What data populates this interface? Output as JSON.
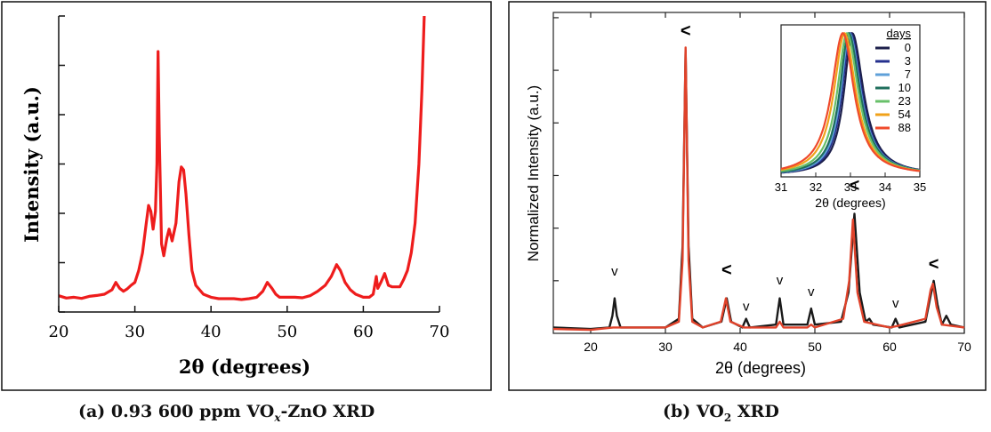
{
  "captions": {
    "a": {
      "pre": "(a) 0.93 600 ppm VO",
      "sub": "x",
      "post": "-ZnO XRD"
    },
    "b": {
      "pre": "(b) VO",
      "sub": "2",
      "post": " XRD"
    }
  },
  "chart_data": [
    {
      "id": "panel-a",
      "type": "line",
      "xlabel": "2θ (degrees)",
      "ylabel": "Intensity (a.u.)",
      "xlim": [
        20,
        70
      ],
      "ylim": [
        0,
        1
      ],
      "xticks": [
        20,
        30,
        40,
        50,
        60,
        70
      ],
      "colors": {
        "series": "#ee1c1c",
        "axis": "#111111"
      },
      "series": [
        {
          "points": [
            [
              20,
              0.055
            ],
            [
              21,
              0.047
            ],
            [
              22,
              0.05
            ],
            [
              23,
              0.046
            ],
            [
              24,
              0.053
            ],
            [
              25,
              0.056
            ],
            [
              26,
              0.06
            ],
            [
              27,
              0.075
            ],
            [
              27.5,
              0.1
            ],
            [
              28,
              0.08
            ],
            [
              28.5,
              0.07
            ],
            [
              29,
              0.078
            ],
            [
              29.5,
              0.09
            ],
            [
              30,
              0.1
            ],
            [
              30.5,
              0.14
            ],
            [
              31,
              0.2
            ],
            [
              31.5,
              0.3
            ],
            [
              31.8,
              0.36
            ],
            [
              32.1,
              0.34
            ],
            [
              32.4,
              0.28
            ],
            [
              32.7,
              0.34
            ],
            [
              32.9,
              0.5
            ],
            [
              33.05,
              0.88
            ],
            [
              33.2,
              0.6
            ],
            [
              33.5,
              0.23
            ],
            [
              33.8,
              0.19
            ],
            [
              34.2,
              0.25
            ],
            [
              34.5,
              0.28
            ],
            [
              34.9,
              0.24
            ],
            [
              35.4,
              0.3
            ],
            [
              35.8,
              0.44
            ],
            [
              36.1,
              0.49
            ],
            [
              36.4,
              0.48
            ],
            [
              36.7,
              0.4
            ],
            [
              37.1,
              0.26
            ],
            [
              37.5,
              0.14
            ],
            [
              38,
              0.09
            ],
            [
              39,
              0.06
            ],
            [
              40,
              0.05
            ],
            [
              41,
              0.045
            ],
            [
              42,
              0.045
            ],
            [
              43,
              0.045
            ],
            [
              44,
              0.042
            ],
            [
              45,
              0.045
            ],
            [
              46,
              0.05
            ],
            [
              46.8,
              0.07
            ],
            [
              47.4,
              0.1
            ],
            [
              48,
              0.08
            ],
            [
              48.5,
              0.06
            ],
            [
              49,
              0.05
            ],
            [
              50,
              0.05
            ],
            [
              51,
              0.05
            ],
            [
              52,
              0.048
            ],
            [
              53,
              0.055
            ],
            [
              54,
              0.07
            ],
            [
              55,
              0.09
            ],
            [
              55.8,
              0.12
            ],
            [
              56.5,
              0.16
            ],
            [
              57,
              0.14
            ],
            [
              57.6,
              0.1
            ],
            [
              58.3,
              0.075
            ],
            [
              59,
              0.06
            ],
            [
              60,
              0.05
            ],
            [
              60.8,
              0.05
            ],
            [
              61.3,
              0.06
            ],
            [
              61.7,
              0.12
            ],
            [
              61.9,
              0.08
            ],
            [
              62.3,
              0.1
            ],
            [
              62.8,
              0.13
            ],
            [
              63.3,
              0.09
            ],
            [
              63.8,
              0.085
            ],
            [
              64.3,
              0.085
            ],
            [
              64.8,
              0.085
            ],
            [
              65.3,
              0.11
            ],
            [
              65.8,
              0.14
            ],
            [
              66.3,
              0.2
            ],
            [
              66.8,
              0.3
            ],
            [
              67.3,
              0.5
            ],
            [
              67.7,
              0.75
            ],
            [
              68,
              1.0
            ]
          ]
        }
      ]
    },
    {
      "id": "panel-b",
      "type": "line",
      "xlabel": "2θ (degrees)",
      "ylabel": "Normalized Intensity (a.u.)",
      "xlim": [
        15,
        70
      ],
      "ylim": [
        0,
        1.1
      ],
      "xticks": [
        20,
        30,
        40,
        50,
        60,
        70
      ],
      "markers": [
        {
          "x": 23.2,
          "symbol": "v",
          "y": 0.18
        },
        {
          "x": 32.7,
          "symbol": "<",
          "y": 1.0
        },
        {
          "x": 38.2,
          "symbol": "<",
          "y": 0.18
        },
        {
          "x": 40.8,
          "symbol": "v",
          "y": 0.06
        },
        {
          "x": 45.3,
          "symbol": "v",
          "y": 0.15
        },
        {
          "x": 49.5,
          "symbol": "v",
          "y": 0.11
        },
        {
          "x": 55.3,
          "symbol": "<",
          "y": 0.47
        },
        {
          "x": 60.8,
          "symbol": "v",
          "y": 0.07
        },
        {
          "x": 65.9,
          "symbol": "<",
          "y": 0.2
        }
      ],
      "series": [
        {
          "color": "#1a1a1a",
          "points": [
            [
              15,
              0.02
            ],
            [
              20,
              0.015
            ],
            [
              22.5,
              0.02
            ],
            [
              22.9,
              0.06
            ],
            [
              23.2,
              0.12
            ],
            [
              23.5,
              0.06
            ],
            [
              24,
              0.02
            ],
            [
              30,
              0.02
            ],
            [
              31.8,
              0.05
            ],
            [
              32.3,
              0.3
            ],
            [
              32.7,
              0.97
            ],
            [
              33.1,
              0.3
            ],
            [
              33.6,
              0.05
            ],
            [
              35,
              0.02
            ],
            [
              37.5,
              0.04
            ],
            [
              38.2,
              0.12
            ],
            [
              38.8,
              0.04
            ],
            [
              40.3,
              0.02
            ],
            [
              40.8,
              0.05
            ],
            [
              41.3,
              0.02
            ],
            [
              44.8,
              0.03
            ],
            [
              45.3,
              0.12
            ],
            [
              45.8,
              0.03
            ],
            [
              49,
              0.03
            ],
            [
              49.5,
              0.085
            ],
            [
              50,
              0.03
            ],
            [
              53.5,
              0.04
            ],
            [
              54.5,
              0.14
            ],
            [
              55.3,
              0.41
            ],
            [
              56,
              0.14
            ],
            [
              56.8,
              0.04
            ],
            [
              57.3,
              0.05
            ],
            [
              57.8,
              0.03
            ],
            [
              60.3,
              0.02
            ],
            [
              60.8,
              0.05
            ],
            [
              61.3,
              0.02
            ],
            [
              64.8,
              0.04
            ],
            [
              65.5,
              0.13
            ],
            [
              65.9,
              0.18
            ],
            [
              66.4,
              0.1
            ],
            [
              67,
              0.03
            ],
            [
              67.6,
              0.06
            ],
            [
              68.2,
              0.03
            ],
            [
              70,
              0.02
            ]
          ]
        },
        {
          "color": "#e0422a",
          "points": [
            [
              15,
              0.015
            ],
            [
              20,
              0.012
            ],
            [
              23,
              0.02
            ],
            [
              30,
              0.02
            ],
            [
              31.8,
              0.04
            ],
            [
              32.3,
              0.25
            ],
            [
              32.7,
              0.98
            ],
            [
              33.1,
              0.25
            ],
            [
              33.6,
              0.04
            ],
            [
              35,
              0.02
            ],
            [
              37.4,
              0.04
            ],
            [
              38.1,
              0.12
            ],
            [
              38.7,
              0.04
            ],
            [
              40.5,
              0.02
            ],
            [
              44.8,
              0.02
            ],
            [
              45.3,
              0.04
            ],
            [
              45.8,
              0.02
            ],
            [
              49,
              0.02
            ],
            [
              49.5,
              0.03
            ],
            [
              50,
              0.02
            ],
            [
              53.8,
              0.05
            ],
            [
              54.6,
              0.18
            ],
            [
              55.1,
              0.39
            ],
            [
              55.7,
              0.14
            ],
            [
              56.6,
              0.04
            ],
            [
              60,
              0.02
            ],
            [
              61,
              0.025
            ],
            [
              64.8,
              0.05
            ],
            [
              65.5,
              0.15
            ],
            [
              65.8,
              0.17
            ],
            [
              66.3,
              0.09
            ],
            [
              67,
              0.03
            ],
            [
              70,
              0.02
            ]
          ]
        }
      ],
      "inset": {
        "xlabel": "2θ (degrees)",
        "xlim": [
          31,
          35
        ],
        "xticks": [
          31,
          32,
          33,
          34,
          35
        ],
        "legend_title": "days",
        "series": [
          {
            "name": "0",
            "color": "#1c1f4a",
            "peak": 33.05,
            "sl": 0.36,
            "sr": 0.5
          },
          {
            "name": "3",
            "color": "#25308e",
            "peak": 33.0,
            "sl": 0.37,
            "sr": 0.5
          },
          {
            "name": "7",
            "color": "#5fa0d9",
            "peak": 32.97,
            "sl": 0.38,
            "sr": 0.5
          },
          {
            "name": "10",
            "color": "#1f6e5c",
            "peak": 32.95,
            "sl": 0.4,
            "sr": 0.5
          },
          {
            "name": "23",
            "color": "#68c06a",
            "peak": 32.9,
            "sl": 0.43,
            "sr": 0.5
          },
          {
            "name": "54",
            "color": "#f0a21a",
            "peak": 32.83,
            "sl": 0.47,
            "sr": 0.5
          },
          {
            "name": "88",
            "color": "#ef4a2b",
            "peak": 32.78,
            "sl": 0.5,
            "sr": 0.5
          }
        ]
      }
    }
  ]
}
